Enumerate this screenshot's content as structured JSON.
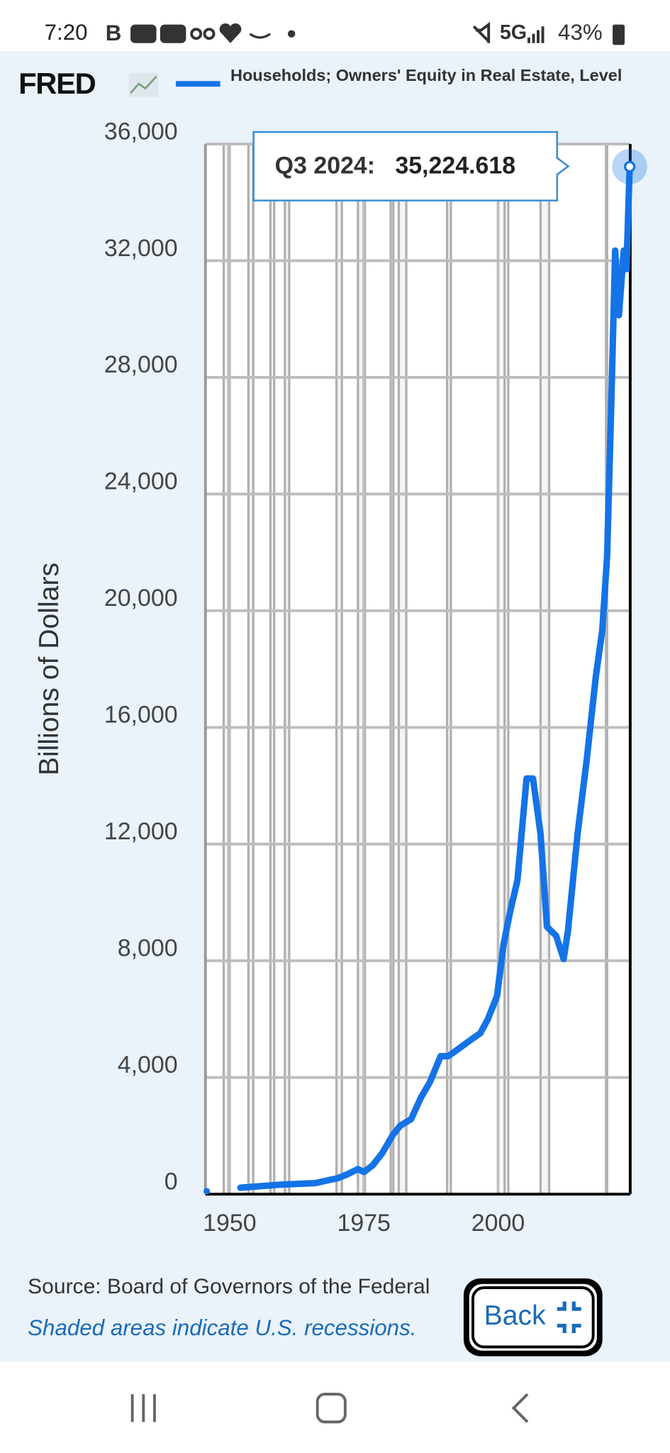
{
  "status_bar": {
    "time": "7:20",
    "network": "5G",
    "battery": "43%"
  },
  "header": {
    "logo": "FRED"
  },
  "chart_data": {
    "type": "line",
    "y_label": "Billions of Dollars",
    "x": [
      1945.75,
      1949,
      1952,
      1959,
      1966,
      1968.4,
      1970,
      1971.8,
      1973.9,
      1975,
      1976.6,
      1978.4,
      1980.4,
      1981.8,
      1983.8,
      1985.6,
      1987.3,
      1989.3,
      1990.7,
      1992.4,
      1995,
      1996.7,
      1998.1,
      1999.8,
      2001,
      2002.2,
      2003.6,
      2005.3,
      2006.5,
      2007.9,
      2009.1,
      2009.9,
      2010.8,
      2012.2,
      2013,
      2014.8,
      2016.5,
      2018.2,
      2019.4,
      2020.3,
      2021.1,
      2021.8,
      2022.5,
      2023.4,
      2023.9,
      2024.5
    ],
    "series": [
      {
        "name": "Households; Owners' Equity in Real Estate, Level",
        "color": "#1473e6",
        "values": [
          100,
          null,
          220,
          320,
          380,
          480,
          540,
          670,
          860,
          760,
          980,
          1400,
          2030,
          2350,
          2570,
          3300,
          3840,
          4730,
          4730,
          4950,
          5300,
          5520,
          6000,
          6790,
          8540,
          9650,
          10760,
          14250,
          14250,
          12350,
          9170,
          9020,
          8860,
          8060,
          9020,
          12350,
          14890,
          17750,
          19330,
          21870,
          27270,
          32350,
          30130,
          32350,
          31710,
          35224.618
        ]
      }
    ],
    "xlim": [
      1945.5,
      2024.6
    ],
    "xticks": [
      1950,
      1975,
      2000
    ],
    "ylim": [
      0,
      36000
    ],
    "yticks": [
      0,
      {
        "value": 4000,
        "label": "4,000"
      },
      {
        "value": 8000,
        "label": "8,000"
      },
      {
        "value": 12000,
        "label": "12,000"
      },
      {
        "value": 16000,
        "label": "16,000"
      },
      {
        "value": 20000,
        "label": "20,000"
      },
      {
        "value": 24000,
        "label": "24,000"
      },
      {
        "value": 28000,
        "label": "28,000"
      },
      {
        "value": 32000,
        "label": "32,000"
      },
      {
        "value": 36000,
        "label": "36,000"
      }
    ],
    "grid": true,
    "recessions": [
      [
        1948.9,
        1949.8
      ],
      [
        1953.5,
        1954.4
      ],
      [
        1957.6,
        1958.3
      ],
      [
        1960.3,
        1961.1
      ],
      [
        1969.9,
        1970.9
      ],
      [
        1973.9,
        1975.2
      ],
      [
        1980.0,
        1980.5
      ],
      [
        1981.5,
        1982.9
      ],
      [
        1990.5,
        1991.2
      ],
      [
        2001.2,
        2001.9
      ],
      [
        2007.9,
        2009.5
      ],
      [
        2020.1,
        2020.3
      ]
    ],
    "tooltip": {
      "label": "Q3 2024:",
      "value": 35224.618,
      "value_label": "35,224.618"
    }
  },
  "footer": {
    "source": "Source: Board of Governors of the Federal",
    "note": "Shaded areas indicate U.S. recessions.",
    "button": "Back"
  }
}
